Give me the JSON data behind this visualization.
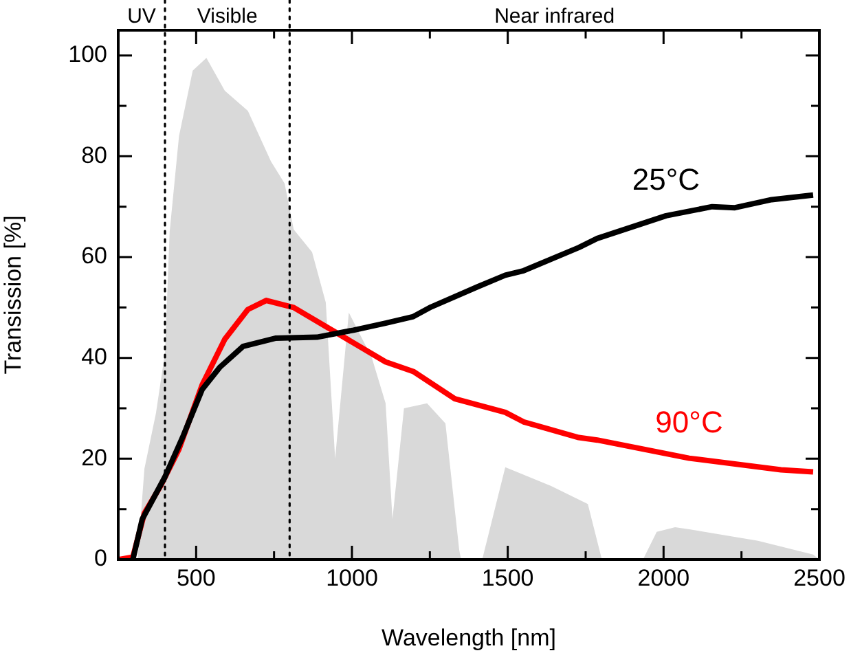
{
  "chart_data": {
    "type": "line",
    "xlabel": "Wavelength [nm]",
    "ylabel": "Transission [%]",
    "xlim": [
      250,
      2500
    ],
    "ylim": [
      0,
      105
    ],
    "xticks": [
      500,
      {
        "value": 750,
        "label": null
      },
      1000,
      {
        "value": 1250,
        "label": null
      },
      1500,
      {
        "value": 1750,
        "label": null
      },
      2000,
      {
        "value": 2250,
        "label": null
      },
      2500
    ],
    "yticks": [
      0,
      {
        "value": 10,
        "label": null
      },
      20,
      {
        "value": 30,
        "label": null
      },
      40,
      {
        "value": 50,
        "label": null
      },
      60,
      {
        "value": 70,
        "label": null
      },
      80,
      {
        "value": 90,
        "label": null
      },
      100
    ],
    "grid": false,
    "legend": false,
    "marker": "none",
    "line_style": "solid",
    "series": [
      {
        "type": "area",
        "color": "#d9d9d9",
        "x": [
          280,
          312,
          334,
          371,
          400,
          415,
          445,
          489,
          533,
          592,
          666,
          740,
          784,
          813,
          872,
          916,
          946,
          990,
          1064,
          1108,
          1130,
          1167,
          1241,
          1300,
          1344,
          1350,
          1418,
          1492,
          1639,
          1757,
          1802,
          1934,
          1978,
          2037,
          2082,
          2303,
          2480,
          2500
        ],
        "values": [
          0,
          0,
          18,
          29,
          41,
          65,
          84,
          97,
          99.5,
          93,
          89,
          79,
          74.6,
          65.5,
          61,
          51,
          20,
          49,
          40,
          31,
          8,
          30,
          31,
          27,
          2,
          0,
          0,
          18.3,
          14.6,
          11,
          0,
          0,
          5.5,
          6.4,
          6,
          3.7,
          1,
          0
        ]
      },
      {
        "name": "25°C",
        "color": "#000000",
        "x": [
          297,
          327,
          400,
          459,
          519,
          577,
          651,
          754,
          887,
          1005,
          1108,
          1197,
          1254,
          1403,
          1492,
          1551,
          1728,
          1787,
          2008,
          2156,
          2229,
          2347,
          2480
        ],
        "values": [
          0,
          8,
          16.4,
          24.6,
          33.7,
          38.2,
          42.3,
          43.9,
          44.1,
          45.5,
          46.9,
          48.2,
          50.1,
          54.1,
          56.4,
          57.3,
          61.9,
          63.7,
          68.2,
          70,
          69.8,
          71.4,
          72.3
        ]
      },
      {
        "name": "90°C",
        "color": "#ff0000",
        "x": [
          253,
          297,
          334,
          386,
          445,
          519,
          592,
          666,
          725,
          813,
          961,
          1108,
          1197,
          1330,
          1492,
          1551,
          1728,
          1787,
          2082,
          2377,
          2480
        ],
        "values": [
          0,
          0.5,
          9.2,
          14.6,
          21.9,
          34.6,
          43.7,
          49.6,
          51.4,
          50,
          44.6,
          39.2,
          37.3,
          31.9,
          29.2,
          27.3,
          24.2,
          23.7,
          20.1,
          17.8,
          17.4
        ]
      }
    ],
    "ref_lines": [
      {
        "axis": "x",
        "value": 400,
        "line_style": "dotted",
        "color": "#000000"
      },
      {
        "axis": "x",
        "value": 800,
        "line_style": "dotted",
        "color": "#000000"
      }
    ],
    "annotations": [
      "UV",
      "Visible",
      "Near infrared"
    ]
  }
}
